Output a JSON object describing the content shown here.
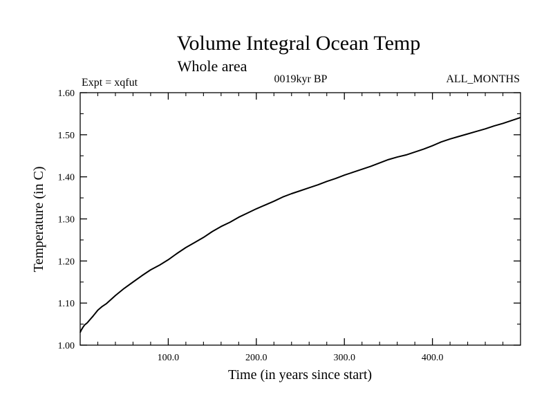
{
  "chart_data": {
    "type": "line",
    "title": "Volume Integral Ocean Temp",
    "subtitle": "Whole area",
    "annotations": {
      "left": "Expt = xqfut",
      "center": "0019kyr BP",
      "right": "ALL_MONTHS"
    },
    "xlabel": "Time (in years since start)",
    "ylabel": "Temperature (in C)",
    "xlim": [
      0,
      500
    ],
    "ylim": [
      1.0,
      1.6
    ],
    "xticks": [
      100,
      200,
      300,
      400
    ],
    "xtick_labels": [
      "100.0",
      "200.0",
      "300.0",
      "400.0"
    ],
    "yticks": [
      1.0,
      1.1,
      1.2,
      1.3,
      1.4,
      1.5,
      1.6
    ],
    "ytick_labels": [
      "1.00",
      "1.10",
      "1.20",
      "1.30",
      "1.40",
      "1.50",
      "1.60"
    ],
    "grid": false,
    "series": [
      {
        "name": "Volume Integral Ocean Temp",
        "color": "#000000",
        "x": [
          0,
          1,
          3,
          5,
          8,
          10,
          15,
          20,
          25,
          30,
          40,
          50,
          60,
          70,
          80,
          90,
          100,
          110,
          120,
          130,
          140,
          150,
          160,
          170,
          180,
          190,
          200,
          210,
          220,
          230,
          240,
          250,
          260,
          270,
          280,
          290,
          300,
          310,
          320,
          330,
          340,
          350,
          360,
          370,
          380,
          390,
          400,
          410,
          420,
          430,
          440,
          450,
          460,
          470,
          480,
          490,
          500
        ],
        "values": [
          1.03,
          1.035,
          1.042,
          1.048,
          1.053,
          1.058,
          1.07,
          1.083,
          1.092,
          1.099,
          1.118,
          1.135,
          1.15,
          1.165,
          1.179,
          1.19,
          1.203,
          1.218,
          1.232,
          1.244,
          1.256,
          1.27,
          1.282,
          1.292,
          1.304,
          1.314,
          1.324,
          1.333,
          1.342,
          1.352,
          1.36,
          1.367,
          1.374,
          1.381,
          1.389,
          1.396,
          1.404,
          1.411,
          1.418,
          1.425,
          1.433,
          1.441,
          1.447,
          1.452,
          1.459,
          1.466,
          1.474,
          1.483,
          1.49,
          1.496,
          1.502,
          1.508,
          1.514,
          1.521,
          1.527,
          1.534,
          1.541
        ]
      }
    ]
  }
}
